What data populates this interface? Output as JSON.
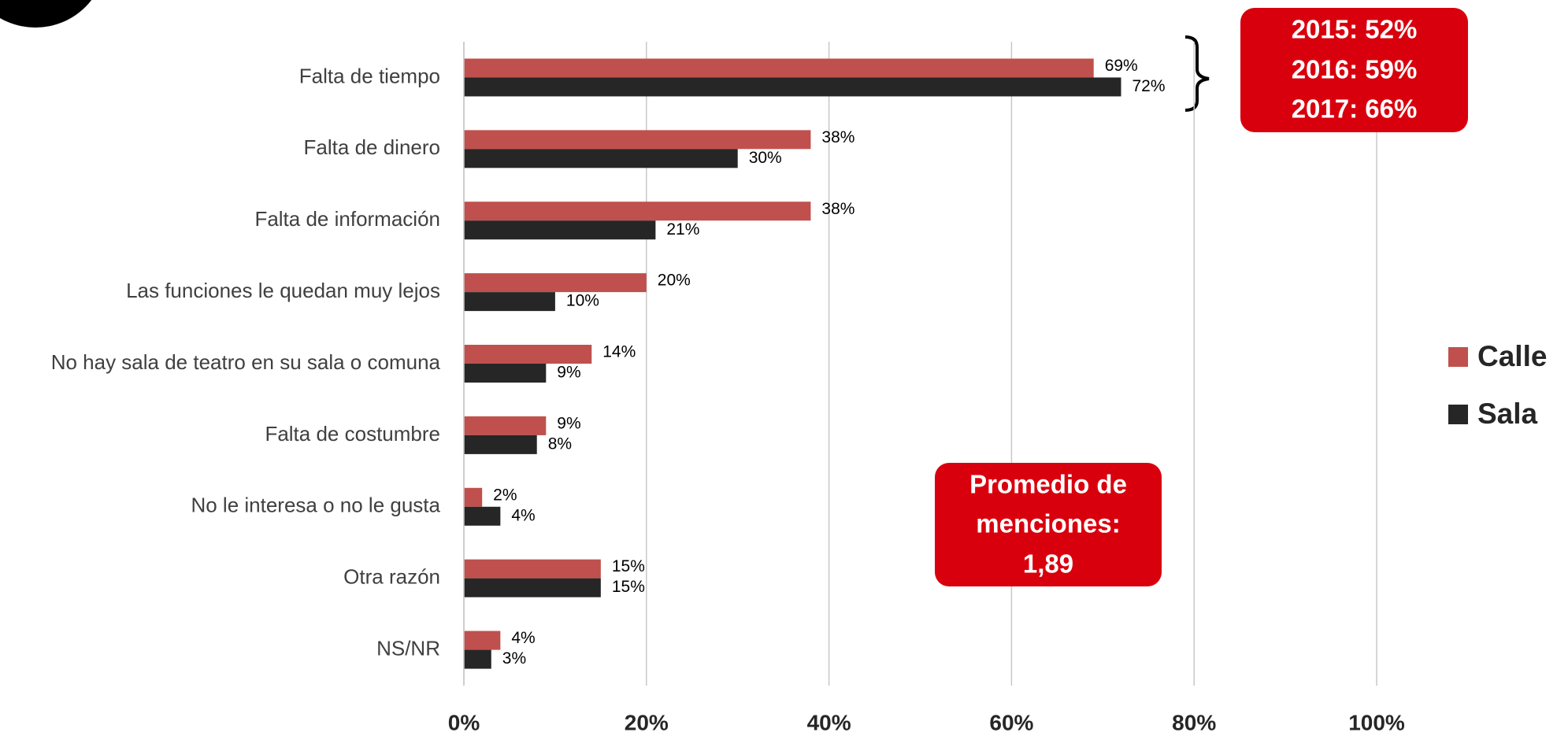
{
  "chart_data": {
    "type": "barh",
    "categories": [
      "Falta de tiempo",
      "Falta de dinero",
      "Falta de información",
      "Las funciones le quedan muy lejos",
      "No hay sala de teatro en su sala o comuna",
      "Falta de costumbre",
      "No le interesa o no le gusta",
      "Otra razón",
      "NS/NR"
    ],
    "series": [
      {
        "name": "Calle",
        "color": "#c0504d",
        "values": [
          69,
          38,
          38,
          20,
          14,
          9,
          2,
          15,
          4
        ],
        "value_labels": [
          "69%",
          "38%",
          "38%",
          "20%",
          "14%",
          "9%",
          "2%",
          "15%",
          "4%"
        ]
      },
      {
        "name": "Sala",
        "color": "#262626",
        "values": [
          72,
          30,
          21,
          10,
          9,
          8,
          4,
          15,
          3
        ],
        "value_labels": [
          "72%",
          "30%",
          "21%",
          "10%",
          "9%",
          "8%",
          "4%",
          "15%",
          "3%"
        ]
      }
    ],
    "xlim": [
      0,
      100
    ],
    "xticks": [
      {
        "value": 0,
        "label": "0%"
      },
      {
        "value": 20,
        "label": "20%"
      },
      {
        "value": 40,
        "label": "40%"
      },
      {
        "value": 60,
        "label": "60%"
      },
      {
        "value": 80,
        "label": "80%"
      },
      {
        "value": 100,
        "label": "100%"
      }
    ],
    "grid": true,
    "legend": "right",
    "annotations": [
      {
        "lines": [
          "2015: 52%",
          "2016: 59%",
          "2017: 66%"
        ],
        "color": "#d9000d"
      },
      {
        "lines": [
          "Promedio de",
          "menciones:",
          "1,89"
        ],
        "color": "#d9000d"
      }
    ]
  }
}
